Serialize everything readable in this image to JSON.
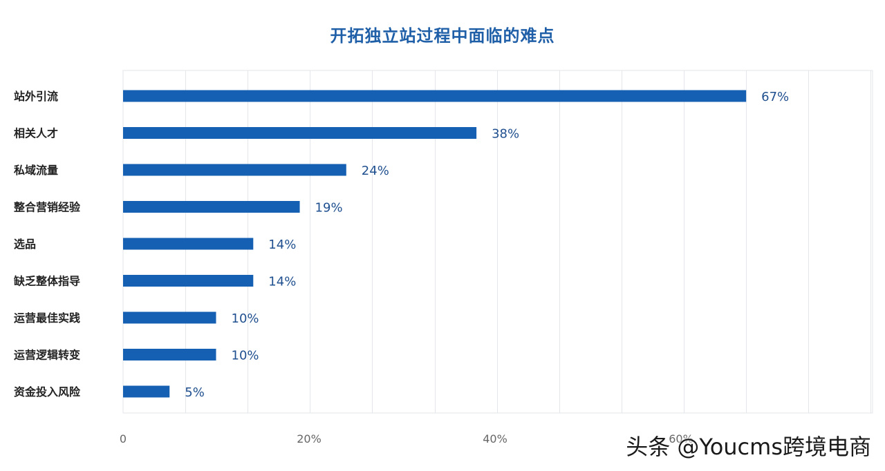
{
  "chart_data": {
    "type": "bar",
    "orientation": "horizontal",
    "title": "开拓独立站过程中面临的难点",
    "categories": [
      "站外引流",
      "相关人才",
      "私域流量",
      "整合营销经验",
      "选品",
      "缺乏整体指导",
      "运营最佳实践",
      "运营逻辑转变",
      "资金投入风险"
    ],
    "values": [
      67,
      38,
      24,
      19,
      14,
      14,
      10,
      10,
      5
    ],
    "value_labels": [
      "67%",
      "38%",
      "24%",
      "19%",
      "14%",
      "14%",
      "10%",
      "10%",
      "5%"
    ],
    "x_ticks": [
      "0",
      "20%",
      "40%",
      "60%"
    ],
    "xlim": [
      0,
      70
    ],
    "xlabel": "",
    "ylabel": "",
    "grid": true,
    "bar_color": "#1560b3",
    "title_color": "#1f5fa8",
    "label_color": "#1f4f8f"
  },
  "watermark": "头条 @Youcms跨境电商"
}
